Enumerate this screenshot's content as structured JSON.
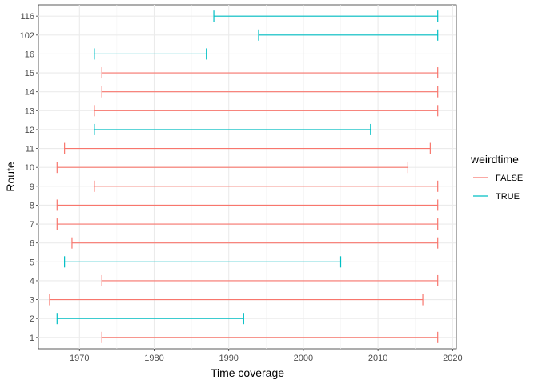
{
  "chart_data": {
    "type": "errorbar-range",
    "xlabel": "Time coverage",
    "ylabel": "Route",
    "xlim": [
      1964.5,
      2020.5
    ],
    "x_ticks": [
      1970,
      1980,
      1990,
      2000,
      2010,
      2020
    ],
    "grid": true,
    "legend": {
      "title": "weirdtime",
      "position": "right",
      "entries": [
        {
          "label": "FALSE",
          "color": "#F8766D"
        },
        {
          "label": "TRUE",
          "color": "#00BFC4"
        }
      ]
    },
    "categories": [
      "1",
      "2",
      "3",
      "4",
      "5",
      "6",
      "7",
      "8",
      "9",
      "10",
      "11",
      "12",
      "13",
      "14",
      "15",
      "16",
      "102",
      "116"
    ],
    "ranges": [
      {
        "route": "1",
        "start": 1973,
        "end": 2018,
        "weirdtime": "FALSE"
      },
      {
        "route": "2",
        "start": 1967,
        "end": 1992,
        "weirdtime": "TRUE"
      },
      {
        "route": "3",
        "start": 1966,
        "end": 2016,
        "weirdtime": "FALSE"
      },
      {
        "route": "4",
        "start": 1973,
        "end": 2018,
        "weirdtime": "FALSE"
      },
      {
        "route": "5",
        "start": 1968,
        "end": 2005,
        "weirdtime": "TRUE"
      },
      {
        "route": "6",
        "start": 1969,
        "end": 2018,
        "weirdtime": "FALSE"
      },
      {
        "route": "7",
        "start": 1967,
        "end": 2018,
        "weirdtime": "FALSE"
      },
      {
        "route": "8",
        "start": 1967,
        "end": 2018,
        "weirdtime": "FALSE"
      },
      {
        "route": "9",
        "start": 1972,
        "end": 2018,
        "weirdtime": "FALSE"
      },
      {
        "route": "10",
        "start": 1967,
        "end": 2014,
        "weirdtime": "FALSE"
      },
      {
        "route": "11",
        "start": 1968,
        "end": 2017,
        "weirdtime": "FALSE"
      },
      {
        "route": "12",
        "start": 1972,
        "end": 2009,
        "weirdtime": "TRUE"
      },
      {
        "route": "13",
        "start": 1972,
        "end": 2018,
        "weirdtime": "FALSE"
      },
      {
        "route": "14",
        "start": 1973,
        "end": 2018,
        "weirdtime": "FALSE"
      },
      {
        "route": "15",
        "start": 1973,
        "end": 2018,
        "weirdtime": "FALSE"
      },
      {
        "route": "16",
        "start": 1972,
        "end": 1987,
        "weirdtime": "TRUE"
      },
      {
        "route": "102",
        "start": 1994,
        "end": 2018,
        "weirdtime": "TRUE"
      },
      {
        "route": "116",
        "start": 1988,
        "end": 2018,
        "weirdtime": "TRUE"
      }
    ]
  }
}
